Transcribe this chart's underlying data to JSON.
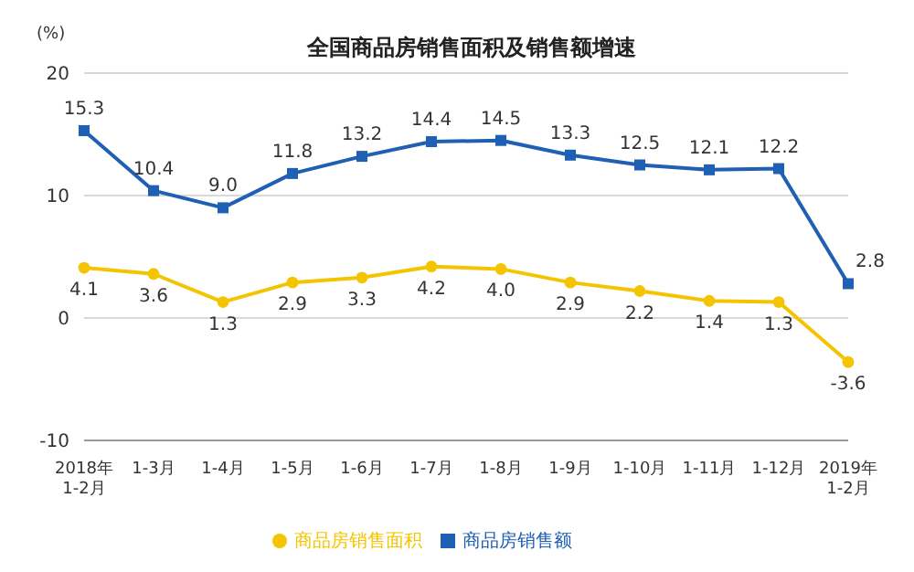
{
  "chart_data": {
    "type": "line",
    "title": "全国商品房销售面积及销售额增速",
    "ylabel": "(%)",
    "categories": [
      "2018年\n1-2月",
      "1-3月",
      "1-4月",
      "1-5月",
      "1-6月",
      "1-7月",
      "1-8月",
      "1-9月",
      "1-10月",
      "1-11月",
      "1-12月",
      "2019年\n1-2月"
    ],
    "series": [
      {
        "name": "商品房销售面积",
        "color": "#f5c400",
        "marker": "circle",
        "values": [
          4.1,
          3.6,
          1.3,
          2.9,
          3.3,
          4.2,
          4.0,
          2.9,
          2.2,
          1.4,
          1.3,
          -3.6
        ],
        "value_labels": [
          "4.1",
          "3.6",
          "1.3",
          "2.9",
          "3.3",
          "4.2",
          "4.0",
          "2.9",
          "2.2",
          "1.4",
          "1.3",
          "-3.6"
        ]
      },
      {
        "name": "商品房销售额",
        "color": "#1f5fb4",
        "marker": "square",
        "values": [
          15.3,
          10.4,
          9.0,
          11.8,
          13.2,
          14.4,
          14.5,
          13.3,
          12.5,
          12.1,
          12.2,
          2.8
        ],
        "value_labels": [
          "15.3",
          "10.4",
          "9.0",
          "11.8",
          "13.2",
          "14.4",
          "14.5",
          "13.3",
          "12.5",
          "12.1",
          "12.2",
          "2.8"
        ]
      }
    ],
    "ylim": [
      -10,
      20
    ],
    "yticks": [
      -10,
      0,
      10,
      20
    ],
    "grid": "y",
    "legend": "bottom",
    "line_style": "solid"
  }
}
